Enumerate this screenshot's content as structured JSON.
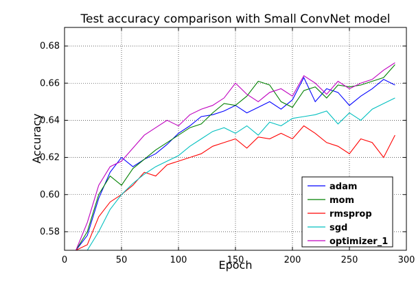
{
  "chart_data": {
    "type": "line",
    "title": "Test accuracy comparison with Small ConvNet model",
    "xlabel": "Epoch",
    "ylabel": "Accuracy",
    "xlim": [
      0,
      300
    ],
    "ylim": [
      0.57,
      0.69
    ],
    "xticks": [
      0,
      50,
      100,
      150,
      200,
      250,
      300
    ],
    "yticks": [
      0.58,
      0.6,
      0.62,
      0.64,
      0.66,
      0.68
    ],
    "xtick_labels": [
      "0",
      "50",
      "100",
      "150",
      "200",
      "250",
      "300"
    ],
    "ytick_labels": [
      "0.58",
      "0.60",
      "0.62",
      "0.64",
      "0.66",
      "0.68"
    ],
    "grid": true,
    "legend_position": "lower-right",
    "x": [
      10,
      20,
      30,
      40,
      50,
      60,
      70,
      80,
      90,
      100,
      110,
      120,
      130,
      140,
      150,
      160,
      170,
      180,
      190,
      200,
      210,
      220,
      230,
      240,
      250,
      260,
      270,
      280,
      290
    ],
    "series": [
      {
        "name": "adam",
        "color": "#0000ff",
        "values": [
          0.565,
          0.578,
          0.598,
          0.612,
          0.62,
          0.615,
          0.619,
          0.622,
          0.627,
          0.633,
          0.637,
          0.642,
          0.643,
          0.645,
          0.648,
          0.644,
          0.647,
          0.65,
          0.646,
          0.651,
          0.663,
          0.65,
          0.657,
          0.655,
          0.648,
          0.653,
          0.657,
          0.662,
          0.659
        ]
      },
      {
        "name": "mom",
        "color": "#008000",
        "values": [
          0.565,
          0.58,
          0.6,
          0.61,
          0.605,
          0.614,
          0.619,
          0.624,
          0.628,
          0.632,
          0.636,
          0.638,
          0.644,
          0.649,
          0.648,
          0.653,
          0.661,
          0.659,
          0.65,
          0.647,
          0.656,
          0.658,
          0.652,
          0.659,
          0.658,
          0.659,
          0.661,
          0.663,
          0.67
        ]
      },
      {
        "name": "rmsprop",
        "color": "#ff0000",
        "values": [
          0.565,
          0.573,
          0.588,
          0.596,
          0.6,
          0.605,
          0.612,
          0.61,
          0.616,
          0.618,
          0.62,
          0.622,
          0.626,
          0.628,
          0.63,
          0.625,
          0.631,
          0.63,
          0.633,
          0.63,
          0.637,
          0.633,
          0.628,
          0.626,
          0.622,
          0.63,
          0.628,
          0.62,
          0.632
        ]
      },
      {
        "name": "sgd",
        "color": "#00bfbf",
        "values": [
          0.562,
          0.567,
          0.58,
          0.592,
          0.6,
          0.606,
          0.611,
          0.615,
          0.618,
          0.621,
          0.626,
          0.63,
          0.634,
          0.636,
          0.633,
          0.637,
          0.632,
          0.639,
          0.637,
          0.641,
          0.642,
          0.643,
          0.645,
          0.638,
          0.644,
          0.64,
          0.646,
          0.649,
          0.652
        ]
      },
      {
        "name": "optimizer_1",
        "color": "#bf00bf",
        "values": [
          0.568,
          0.585,
          0.605,
          0.615,
          0.618,
          0.625,
          0.632,
          0.636,
          0.64,
          0.637,
          0.643,
          0.646,
          0.648,
          0.652,
          0.66,
          0.654,
          0.65,
          0.655,
          0.657,
          0.653,
          0.664,
          0.66,
          0.654,
          0.661,
          0.657,
          0.66,
          0.662,
          0.667,
          0.671
        ]
      }
    ]
  }
}
